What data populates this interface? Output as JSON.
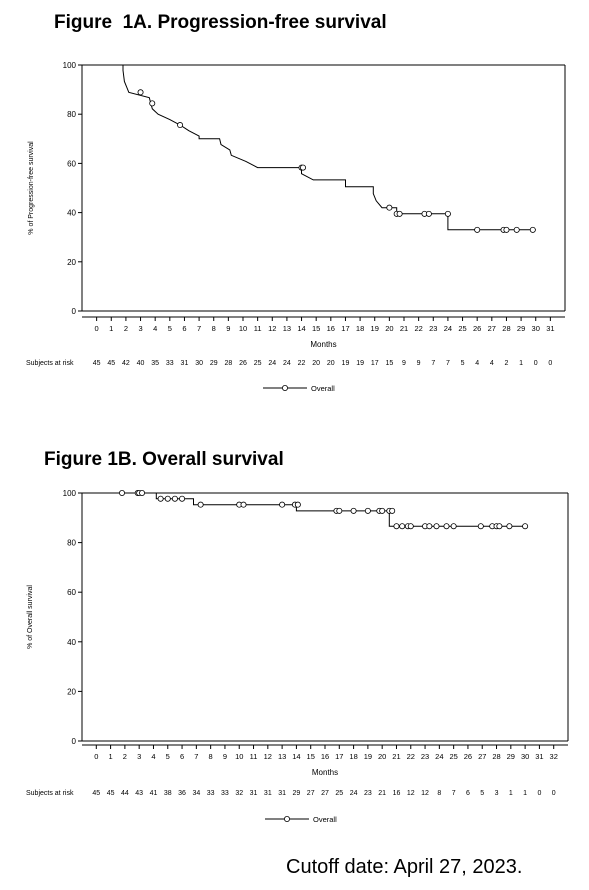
{
  "chart_data": [
    {
      "type": "line",
      "title": "Figure  1A. Progression-free survival",
      "xlabel": "Months",
      "ylabel": "% of Progression-free survival",
      "xlim": [
        -1,
        32
      ],
      "ylim": [
        0,
        100
      ],
      "x_ticks": [
        0,
        1,
        2,
        3,
        4,
        5,
        6,
        7,
        8,
        9,
        10,
        11,
        12,
        13,
        14,
        15,
        16,
        17,
        18,
        19,
        20,
        21,
        22,
        23,
        24,
        25,
        26,
        27,
        28,
        29,
        30,
        31
      ],
      "y_ticks": [
        0,
        20,
        40,
        60,
        80,
        100
      ],
      "grid": false,
      "legend": {
        "placement": "bottom-center",
        "entries": [
          "Overall"
        ]
      },
      "series": [
        {
          "name": "Overall",
          "step": [
            [
              0,
              100
            ],
            [
              1.8,
              100
            ],
            [
              1.8,
              97.8
            ],
            [
              1.9,
              93.3
            ],
            [
              2.2,
              88.9
            ],
            [
              3.6,
              86.7
            ],
            [
              3.7,
              84.4
            ],
            [
              3.8,
              82.2
            ],
            [
              4.2,
              80
            ],
            [
              5,
              77.8
            ],
            [
              5.7,
              75.6
            ],
            [
              6.3,
              73.3
            ],
            [
              7,
              71.1
            ],
            [
              7,
              70
            ],
            [
              8.4,
              70
            ],
            [
              8.5,
              67.7
            ],
            [
              9.1,
              65.5
            ],
            [
              9.2,
              63.3
            ],
            [
              10.2,
              60.8
            ],
            [
              11,
              58.3
            ],
            [
              14,
              58.3
            ],
            [
              14,
              55.8
            ],
            [
              14.8,
              53.3
            ],
            [
              17,
              53.3
            ],
            [
              17,
              50.5
            ],
            [
              18.9,
              50.5
            ],
            [
              18.9,
              47.7
            ],
            [
              19.1,
              44.8
            ],
            [
              19.5,
              42.0
            ],
            [
              20.5,
              42.0
            ],
            [
              20.5,
              39.5
            ],
            [
              24,
              39.5
            ],
            [
              24,
              33
            ],
            [
              30,
              33
            ]
          ],
          "censored": [
            [
              3,
              88.9
            ],
            [
              3.8,
              84.4
            ],
            [
              5.7,
              75.6
            ],
            [
              14,
              58.3
            ],
            [
              14.1,
              58.3
            ],
            [
              20,
              42.0
            ],
            [
              20.5,
              39.5
            ],
            [
              20.7,
              39.5
            ],
            [
              22.4,
              39.5
            ],
            [
              22.7,
              39.5
            ],
            [
              24,
              39.5
            ],
            [
              26,
              33
            ],
            [
              27.8,
              33
            ],
            [
              28,
              33
            ],
            [
              28.7,
              33
            ],
            [
              29.8,
              33
            ]
          ]
        }
      ],
      "risk_table": {
        "label": "Subjects at risk",
        "times": [
          0,
          1,
          2,
          3,
          4,
          5,
          6,
          7,
          8,
          9,
          10,
          11,
          12,
          13,
          14,
          15,
          16,
          17,
          18,
          19,
          20,
          21,
          22,
          23,
          24,
          25,
          26,
          27,
          28,
          29,
          30,
          31
        ],
        "counts": [
          45,
          45,
          42,
          40,
          35,
          33,
          31,
          30,
          29,
          28,
          26,
          25,
          24,
          24,
          22,
          20,
          20,
          19,
          19,
          17,
          15,
          9,
          9,
          7,
          7,
          5,
          4,
          4,
          2,
          1,
          0,
          0
        ]
      }
    },
    {
      "type": "line",
      "title": "Figure 1B. Overall survival",
      "xlabel": "Months",
      "ylabel": "% of Overall survival",
      "xlim": [
        -1,
        33
      ],
      "ylim": [
        0,
        100
      ],
      "x_ticks": [
        0,
        1,
        2,
        3,
        4,
        5,
        6,
        7,
        8,
        9,
        10,
        11,
        12,
        13,
        14,
        15,
        16,
        17,
        18,
        19,
        20,
        21,
        22,
        23,
        24,
        25,
        26,
        27,
        28,
        29,
        30,
        31,
        32
      ],
      "y_ticks": [
        0,
        20,
        40,
        60,
        80,
        100
      ],
      "grid": false,
      "legend": {
        "placement": "bottom-center",
        "entries": [
          "Overall"
        ]
      },
      "series": [
        {
          "name": "Overall",
          "step": [
            [
              0,
              100
            ],
            [
              4.2,
              100
            ],
            [
              4.2,
              97.7
            ],
            [
              6.8,
              97.7
            ],
            [
              6.8,
              95.3
            ],
            [
              14,
              95.3
            ],
            [
              14,
              92.8
            ],
            [
              20.5,
              92.8
            ],
            [
              20.5,
              86.6
            ],
            [
              30,
              86.6
            ]
          ],
          "censored": [
            [
              1.8,
              100
            ],
            [
              2.9,
              100
            ],
            [
              3,
              100
            ],
            [
              3.2,
              100
            ],
            [
              4.5,
              97.7
            ],
            [
              5,
              97.7
            ],
            [
              5.5,
              97.7
            ],
            [
              6,
              97.7
            ],
            [
              7.3,
              95.3
            ],
            [
              10,
              95.3
            ],
            [
              10.3,
              95.3
            ],
            [
              13,
              95.3
            ],
            [
              13.9,
              95.3
            ],
            [
              14.1,
              95.3
            ],
            [
              16.8,
              92.8
            ],
            [
              17,
              92.8
            ],
            [
              18,
              92.8
            ],
            [
              19,
              92.8
            ],
            [
              19.8,
              92.8
            ],
            [
              20,
              92.8
            ],
            [
              20.5,
              92.8
            ],
            [
              20.7,
              92.8
            ],
            [
              21,
              86.6
            ],
            [
              21.4,
              86.6
            ],
            [
              21.8,
              86.6
            ],
            [
              22,
              86.6
            ],
            [
              23,
              86.6
            ],
            [
              23.3,
              86.6
            ],
            [
              23.8,
              86.6
            ],
            [
              24.5,
              86.6
            ],
            [
              25,
              86.6
            ],
            [
              26.9,
              86.6
            ],
            [
              27.7,
              86.6
            ],
            [
              28,
              86.6
            ],
            [
              28.2,
              86.6
            ],
            [
              28.9,
              86.6
            ],
            [
              30,
              86.6
            ]
          ]
        }
      ],
      "risk_table": {
        "label": "Subjects at risk",
        "times": [
          0,
          1,
          2,
          3,
          4,
          5,
          6,
          7,
          8,
          9,
          10,
          11,
          12,
          13,
          14,
          15,
          16,
          17,
          18,
          19,
          20,
          21,
          22,
          23,
          24,
          25,
          26,
          27,
          28,
          29,
          30,
          31,
          32
        ],
        "counts": [
          45,
          45,
          44,
          43,
          41,
          38,
          36,
          34,
          33,
          33,
          32,
          31,
          31,
          31,
          29,
          27,
          27,
          25,
          24,
          23,
          21,
          16,
          12,
          12,
          8,
          7,
          6,
          5,
          3,
          1,
          1,
          0,
          0
        ]
      }
    }
  ],
  "footer": {
    "cutoff": "Cutoff date: April 27, 2023."
  }
}
